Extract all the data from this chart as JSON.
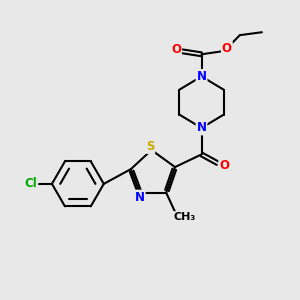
{
  "bg_color": "#e8e8e8",
  "bond_color": "#000000",
  "atom_colors": {
    "N": "#0000ff",
    "O": "#ff0000",
    "S": "#ccaa00",
    "Cl": "#00aa00",
    "C": "#000000"
  },
  "figsize": [
    3.0,
    3.0
  ],
  "dpi": 100
}
